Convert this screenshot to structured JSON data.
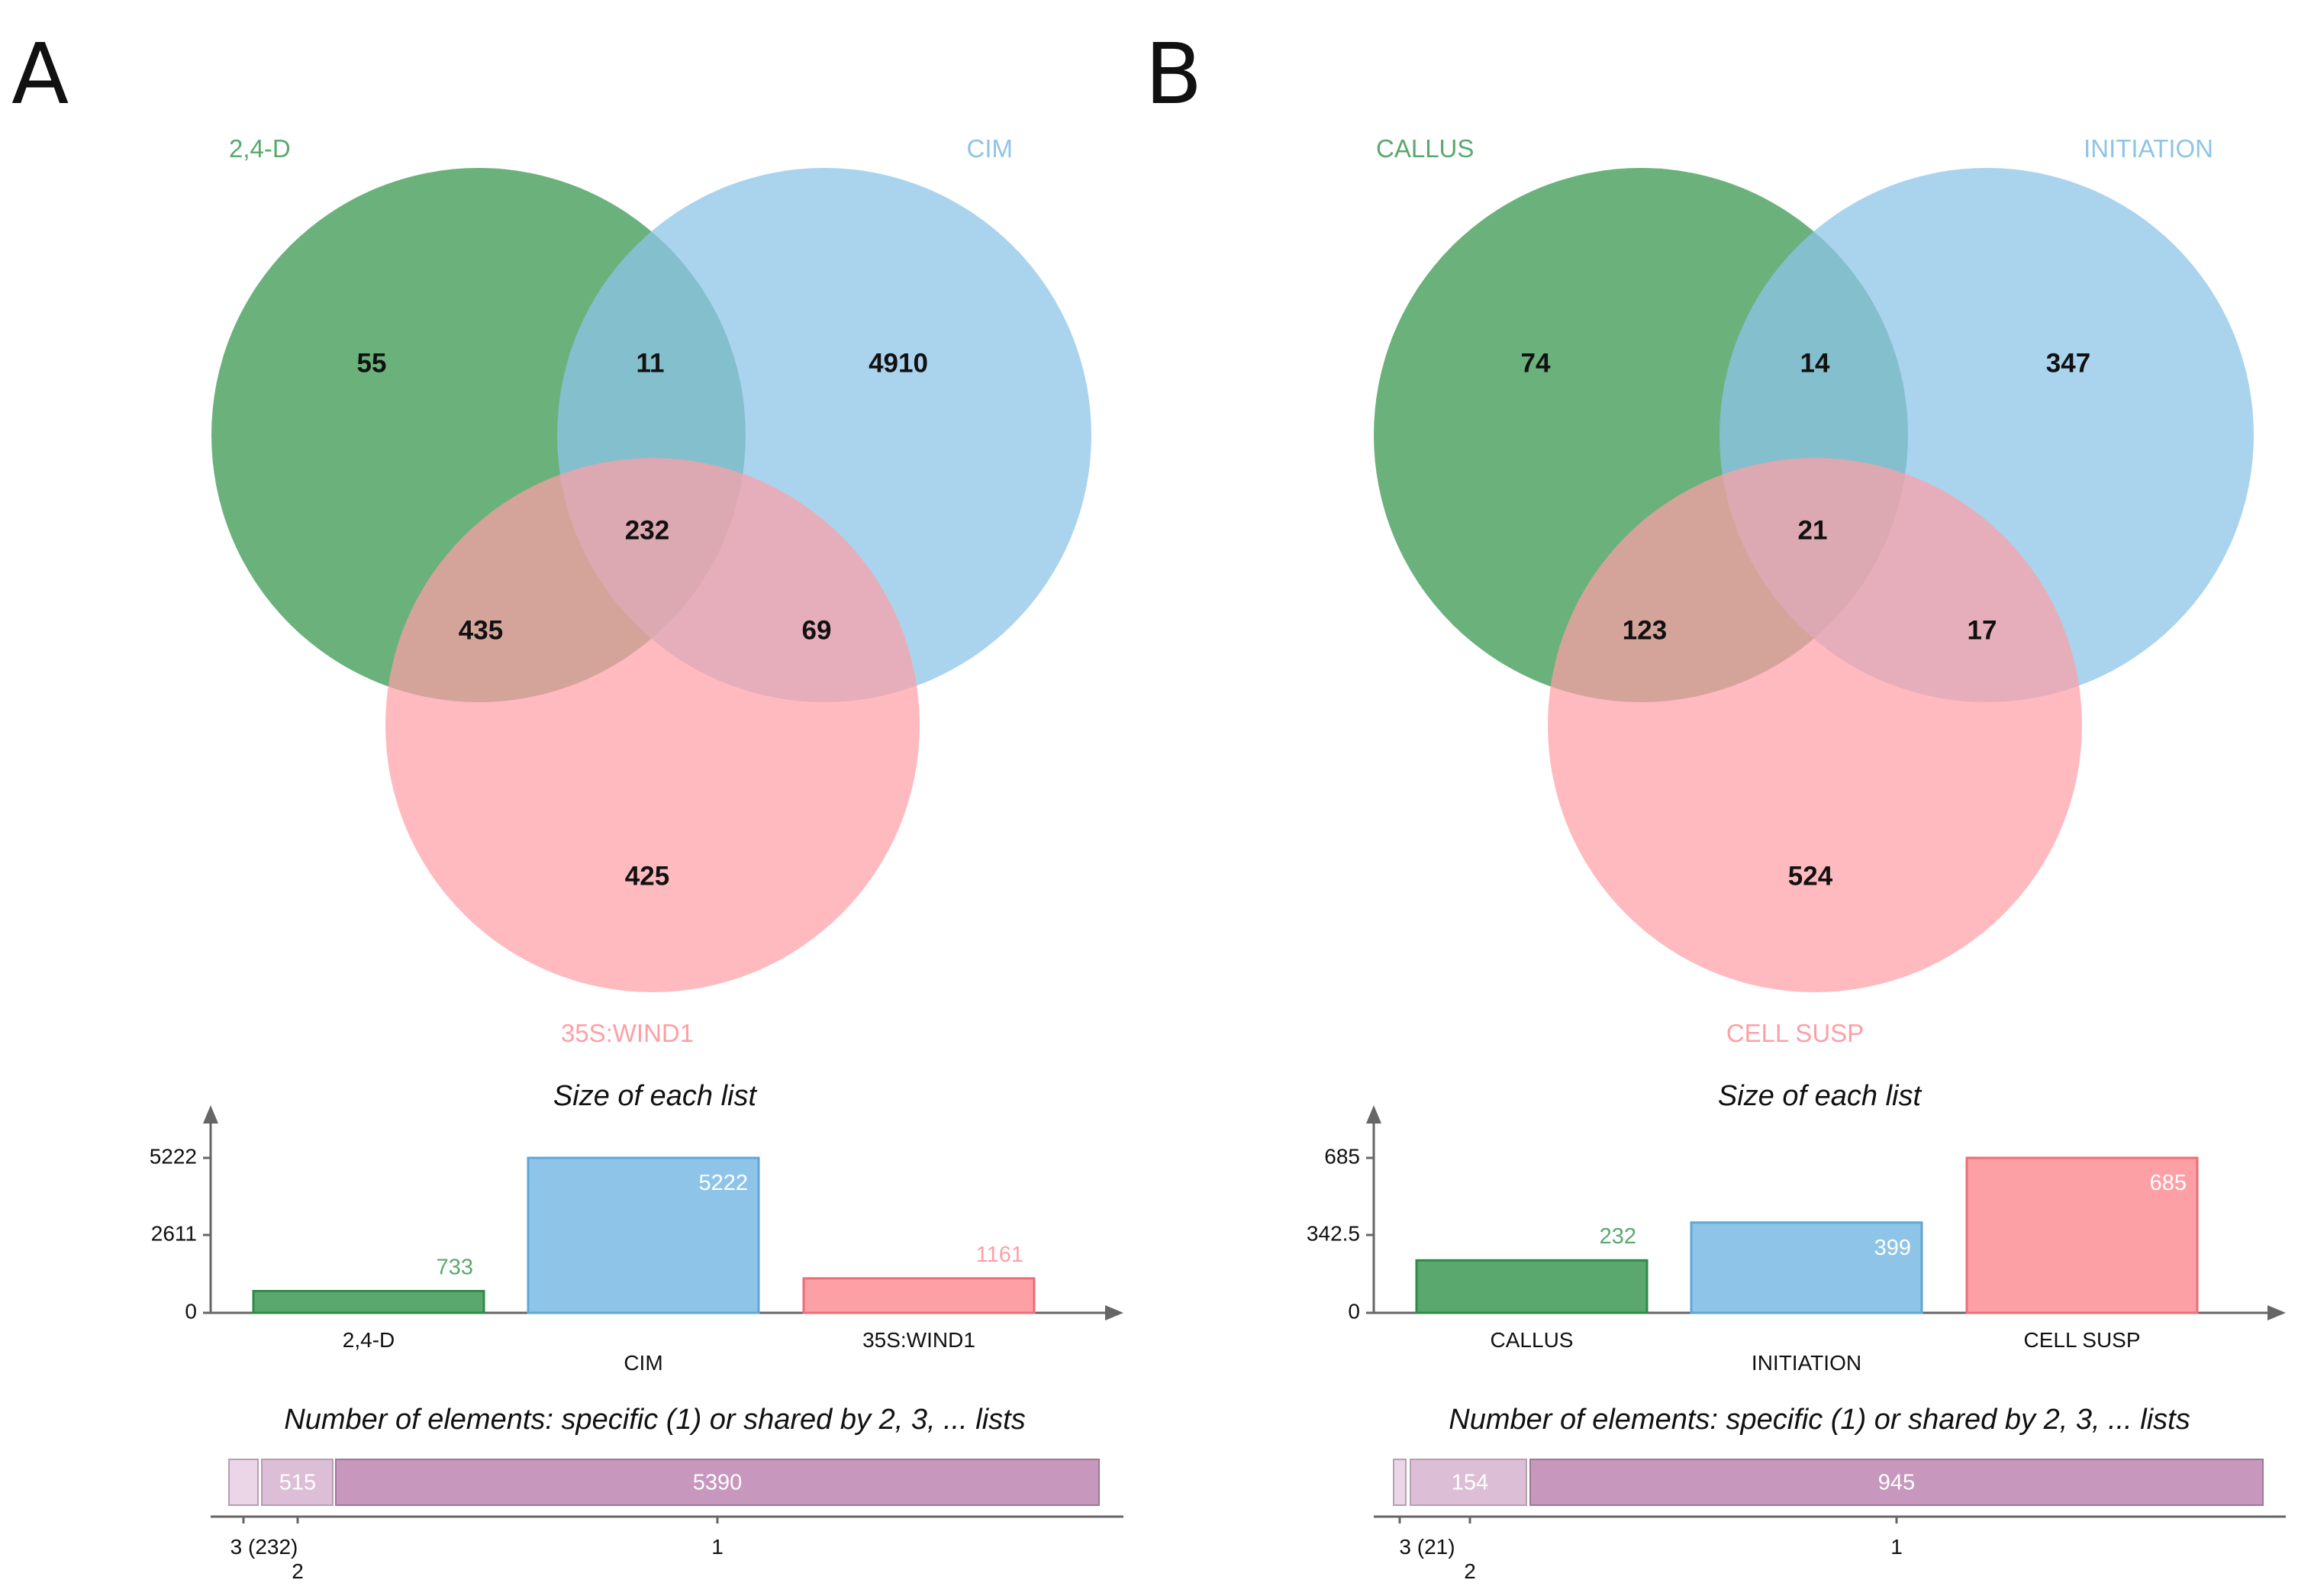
{
  "colors": {
    "set1": "#5aa86e",
    "set2": "#8ec4e8",
    "set3": "#fda0a6",
    "set1_text": "#5aa86e",
    "set2_text": "#8ec4e8",
    "set3_text": "#fda0a6",
    "shared_1": "#c897bd",
    "shared_2": "#dcbfd6",
    "shared_3": "#ead6e6"
  },
  "panels": [
    {
      "letter": "A",
      "sets": [
        "2,4-D",
        "CIM",
        "35S:WIND1"
      ],
      "regions": {
        "only1": "55",
        "only2": "4910",
        "only3": "425",
        "s12": "11",
        "s13": "435",
        "s23": "69",
        "s123": "232"
      },
      "size_title": "Size of each list",
      "size_ticks": [
        "5222",
        "2611",
        "0"
      ],
      "size_values": [
        "733",
        "5222",
        "1161"
      ],
      "shared_title": "Number of elements: specific (1) or shared by 2, 3, ... lists",
      "shared_values": [
        "515",
        "5390"
      ],
      "shared_labels": {
        "three": "3 (232)",
        "two": "2",
        "one": "1"
      }
    },
    {
      "letter": "B",
      "sets": [
        "CALLUS",
        "INITIATION",
        "CELL SUSP"
      ],
      "regions": {
        "only1": "74",
        "only2": "347",
        "only3": "524",
        "s12": "14",
        "s13": "123",
        "s23": "17",
        "s123": "21"
      },
      "size_title": "Size of each list",
      "size_ticks": [
        "685",
        "342.5",
        "0"
      ],
      "size_values": [
        "232",
        "399",
        "685"
      ],
      "shared_title": "Number of elements: specific (1) or shared by 2, 3, ... lists",
      "shared_values": [
        "154",
        "945"
      ],
      "shared_labels": {
        "three": "3 (21)",
        "two": "2",
        "one": "1"
      }
    }
  ],
  "chart_data": [
    {
      "type": "bar",
      "title": "Size of each list",
      "categories": [
        "2,4-D",
        "CIM",
        "35S:WIND1"
      ],
      "values": [
        733,
        5222,
        1161
      ],
      "ylim": [
        0,
        5222
      ]
    },
    {
      "type": "bar",
      "title": "Number of elements: specific (1) or shared by 2, 3, ... lists",
      "categories": [
        "3",
        "2",
        "1"
      ],
      "values": [
        232,
        515,
        5390
      ]
    },
    {
      "type": "bar",
      "title": "Size of each list",
      "categories": [
        "CALLUS",
        "INITIATION",
        "CELL SUSP"
      ],
      "values": [
        232,
        399,
        685
      ],
      "ylim": [
        0,
        685
      ]
    },
    {
      "type": "bar",
      "title": "Number of elements: specific (1) or shared by 2, 3, ... lists",
      "categories": [
        "3",
        "2",
        "1"
      ],
      "values": [
        21,
        154,
        945
      ]
    }
  ]
}
